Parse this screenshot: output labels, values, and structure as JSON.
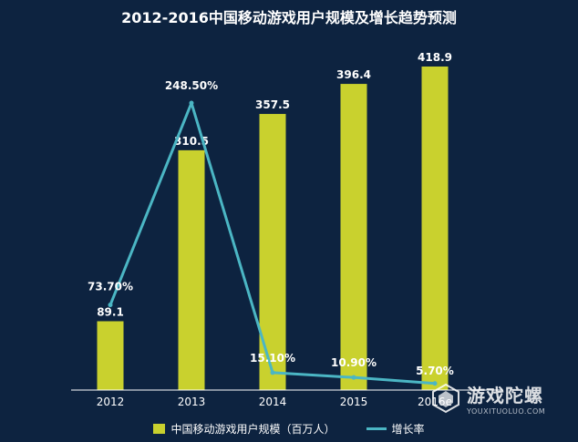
{
  "chart_data": {
    "type": "bar",
    "title": "2012-2016中国移动游戏用户规模及增长趋势预测",
    "categories": [
      "2012",
      "2013",
      "2014",
      "2015",
      "2016e"
    ],
    "series": [
      {
        "name": "中国移动游戏用户规模（百万人）",
        "kind": "bar",
        "values": [
          89.1,
          310.5,
          357.5,
          396.4,
          418.9
        ],
        "labels": [
          "89.1",
          "310.5",
          "357.5",
          "396.4",
          "418.9"
        ]
      },
      {
        "name": "增长率",
        "kind": "line",
        "values": [
          73.7,
          248.5,
          15.1,
          10.9,
          5.7
        ],
        "labels": [
          "73.70%",
          "248.50%",
          "15.10%",
          "10.90%",
          "5.70%"
        ]
      }
    ],
    "colors": {
      "bar": "#c9d12e",
      "line": "#4bb6c4",
      "background": "#0d2340"
    },
    "grid": false,
    "legend": "bottom"
  },
  "watermark": {
    "name": "游戏陀螺",
    "url": "YOUXITUOLUO.COM"
  }
}
